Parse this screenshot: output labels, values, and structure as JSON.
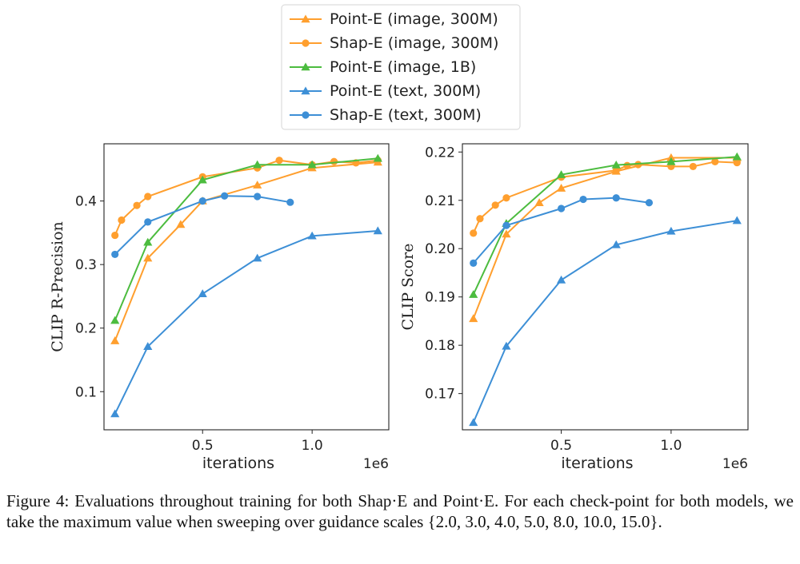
{
  "chart_data": [
    {
      "type": "line",
      "ylabel": "CLIP R-Precision",
      "xlabel": "iterations",
      "x_scale_label": "1e6",
      "xlim": [
        0.05,
        1.35
      ],
      "ylim": [
        0.04,
        0.49
      ],
      "x_ticks": [
        0.5,
        1.0
      ],
      "x_tick_labels": [
        "0.5",
        "1.0"
      ],
      "y_ticks": [
        0.1,
        0.2,
        0.3,
        0.4
      ],
      "y_tick_labels": [
        "0.1",
        "0.2",
        "0.3",
        "0.4"
      ],
      "series": [
        {
          "name": "Point-E (image, 300M)",
          "color": "#ff9f2e",
          "marker": "triangle",
          "x": [
            0.1,
            0.25,
            0.4,
            0.5,
            0.75,
            1.0,
            1.3
          ],
          "y": [
            0.18,
            0.31,
            0.363,
            0.4,
            0.425,
            0.452,
            0.461
          ]
        },
        {
          "name": "Shap-E (image, 300M)",
          "color": "#ff9f2e",
          "marker": "circle",
          "x": [
            0.1,
            0.13,
            0.2,
            0.25,
            0.5,
            0.75,
            0.85,
            1.0,
            1.1,
            1.2,
            1.3
          ],
          "y": [
            0.346,
            0.37,
            0.393,
            0.407,
            0.438,
            0.452,
            0.464,
            0.457,
            0.462,
            0.46,
            0.464
          ]
        },
        {
          "name": "Point-E (image, 1B)",
          "color": "#4cbc3f",
          "marker": "triangle",
          "x": [
            0.1,
            0.25,
            0.5,
            0.75,
            1.0,
            1.3
          ],
          "y": [
            0.212,
            0.335,
            0.433,
            0.457,
            0.457,
            0.467
          ]
        },
        {
          "name": "Point-E (text, 300M)",
          "color": "#3d8fd6",
          "marker": "triangle",
          "x": [
            0.1,
            0.25,
            0.5,
            0.75,
            1.0,
            1.3
          ],
          "y": [
            0.065,
            0.171,
            0.254,
            0.31,
            0.345,
            0.353
          ]
        },
        {
          "name": "Shap-E (text, 300M)",
          "color": "#3d8fd6",
          "marker": "circle",
          "x": [
            0.1,
            0.25,
            0.5,
            0.6,
            0.75,
            0.9
          ],
          "y": [
            0.316,
            0.367,
            0.4,
            0.408,
            0.407,
            0.398
          ]
        }
      ]
    },
    {
      "type": "line",
      "ylabel": "CLIP Score",
      "xlabel": "iterations",
      "x_scale_label": "1e6",
      "xlim": [
        0.05,
        1.35
      ],
      "ylim": [
        0.1625,
        0.2217
      ],
      "x_ticks": [
        0.5,
        1.0
      ],
      "x_tick_labels": [
        "0.5",
        "1.0"
      ],
      "y_ticks": [
        0.17,
        0.18,
        0.19,
        0.2,
        0.21,
        0.22
      ],
      "y_tick_labels": [
        "0.17",
        "0.18",
        "0.19",
        "0.20",
        "0.21",
        "0.22"
      ],
      "series": [
        {
          "name": "Point-E (image, 300M)",
          "color": "#ff9f2e",
          "marker": "triangle",
          "x": [
            0.1,
            0.25,
            0.4,
            0.5,
            0.75,
            1.0,
            1.3
          ],
          "y": [
            0.1855,
            0.203,
            0.2095,
            0.2125,
            0.216,
            0.2188,
            0.2188
          ]
        },
        {
          "name": "Shap-E (image, 300M)",
          "color": "#ff9f2e",
          "marker": "circle",
          "x": [
            0.1,
            0.13,
            0.2,
            0.25,
            0.5,
            0.75,
            0.8,
            0.85,
            1.0,
            1.1,
            1.2,
            1.3
          ],
          "y": [
            0.2032,
            0.2062,
            0.209,
            0.2105,
            0.2148,
            0.2162,
            0.2172,
            0.2174,
            0.217,
            0.217,
            0.218,
            0.2178
          ]
        },
        {
          "name": "Point-E (image, 1B)",
          "color": "#4cbc3f",
          "marker": "triangle",
          "x": [
            0.1,
            0.25,
            0.5,
            0.75,
            1.0,
            1.3
          ],
          "y": [
            0.1905,
            0.2052,
            0.2153,
            0.2173,
            0.218,
            0.219
          ]
        },
        {
          "name": "Point-E (text, 300M)",
          "color": "#3d8fd6",
          "marker": "triangle",
          "x": [
            0.1,
            0.25,
            0.5,
            0.75,
            1.0,
            1.3
          ],
          "y": [
            0.164,
            0.1798,
            0.1935,
            0.2008,
            0.2036,
            0.2058
          ]
        },
        {
          "name": "Shap-E (text, 300M)",
          "color": "#3d8fd6",
          "marker": "circle",
          "x": [
            0.1,
            0.25,
            0.5,
            0.6,
            0.75,
            0.9
          ],
          "y": [
            0.197,
            0.2048,
            0.2083,
            0.2102,
            0.2105,
            0.2095
          ]
        }
      ]
    }
  ],
  "legend": [
    {
      "label": "Point-E (image, 300M)",
      "color": "#ff9f2e",
      "marker": "triangle"
    },
    {
      "label": "Shap-E (image, 300M)",
      "color": "#ff9f2e",
      "marker": "circle"
    },
    {
      "label": "Point-E (image, 1B)",
      "color": "#4cbc3f",
      "marker": "triangle"
    },
    {
      "label": "Point-E (text, 300M)",
      "color": "#3d8fd6",
      "marker": "triangle"
    },
    {
      "label": "Shap-E (text, 300M)",
      "color": "#3d8fd6",
      "marker": "circle"
    }
  ],
  "caption": "Figure 4:  Evaluations throughout training for both Shap·E and Point·E. For each check-point for both models, we take the maximum value when sweeping over guidance scales {2.0, 3.0, 4.0, 5.0, 8.0, 10.0, 15.0}."
}
